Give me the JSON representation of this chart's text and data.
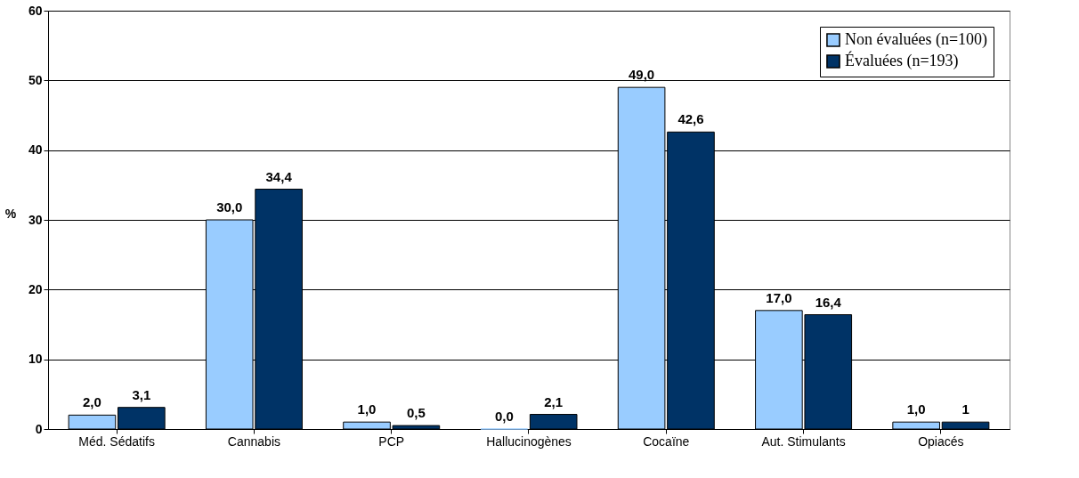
{
  "chart_data": {
    "type": "bar",
    "categories": [
      "Méd. Sédatifs",
      "Cannabis",
      "PCP",
      "Hallucinogènes",
      "Cocaïne",
      "Aut. Stimulants",
      "Opiacés"
    ],
    "series": [
      {
        "name": "Non évaluées (n=100)",
        "color": "#99ccff",
        "values": [
          2.0,
          30.0,
          1.0,
          0.0,
          49.0,
          17.0,
          1.0
        ],
        "value_labels": [
          "2,0",
          "30,0",
          "1,0",
          "0,0",
          "49,0",
          "17,0",
          "1,0"
        ]
      },
      {
        "name": "Évaluées (n=193)",
        "color": "#003366",
        "values": [
          3.1,
          34.4,
          0.5,
          2.1,
          42.6,
          16.4,
          1.0
        ],
        "value_labels": [
          "3,1",
          "34,4",
          "0,5",
          "2,1",
          "42,6",
          "16,4",
          "1"
        ]
      }
    ],
    "ylabel": "%",
    "ylim": [
      0,
      60
    ],
    "yticks": [
      0,
      10,
      20,
      30,
      40,
      50,
      60
    ],
    "grid": "y",
    "legend": "top right"
  }
}
